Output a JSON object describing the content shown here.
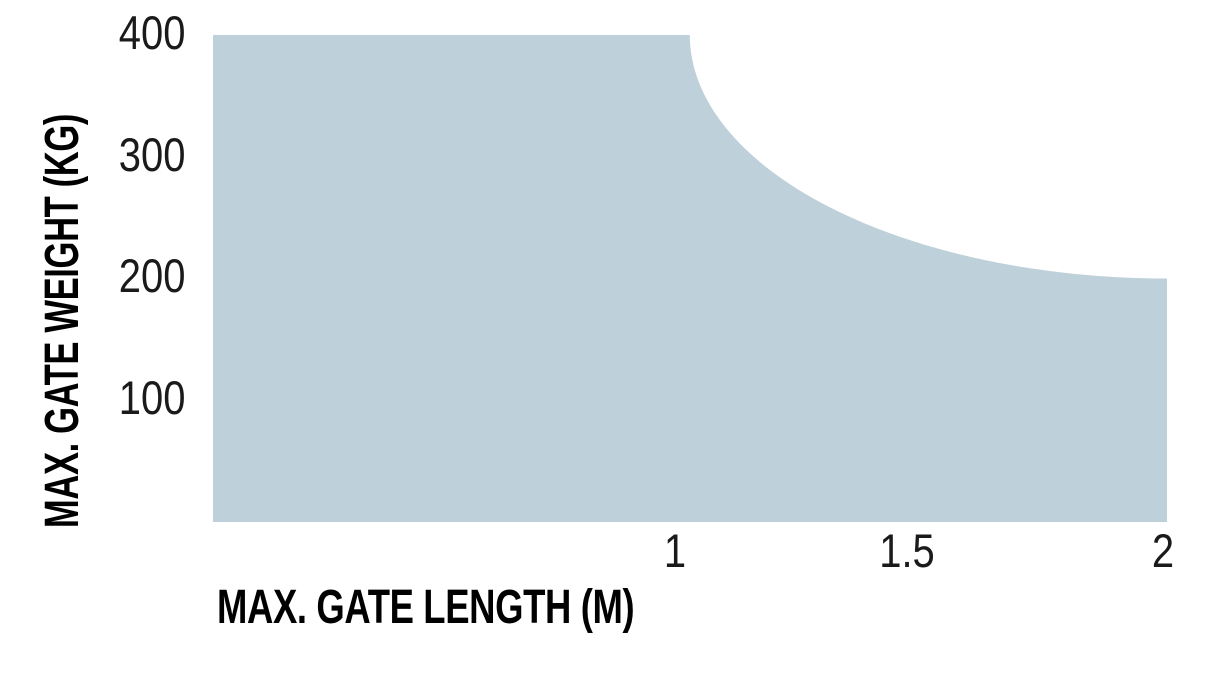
{
  "page": {
    "background": "#ffffff"
  },
  "chart_data": {
    "type": "area",
    "title": "",
    "xlabel": "MAX. GATE LENGTH (M)",
    "ylabel": "MAX. GATE WEIGHT (KG)",
    "xlim": [
      0.06,
      2.0
    ],
    "ylim": [
      0,
      400
    ],
    "grid": false,
    "legend": false,
    "xticks": [
      {
        "value": 1,
        "label": "1"
      },
      {
        "value": 1.5,
        "label": "1.5"
      },
      {
        "value": 2,
        "label": "2"
      }
    ],
    "yticks": [
      {
        "value": 400,
        "label": "400"
      },
      {
        "value": 300,
        "label": "300"
      },
      {
        "value": 200,
        "label": "200"
      },
      {
        "value": 100,
        "label": "100"
      }
    ],
    "area": {
      "description": "Permitted combinations of gate length and gate weight (filled region)",
      "flat_top_weight_kg": 400,
      "flat_top_until_length_m": 1.03,
      "curve_shape": "quarter-ellipse, vertical tangent at curve start, horizontal tangent at curve end",
      "curve_end": {
        "length_m": 2.0,
        "weight_kg": 200
      },
      "boundary_points": [
        {
          "length_m": 1.03,
          "weight_kg": 400
        },
        {
          "length_m": 1.07,
          "weight_kg": 350
        },
        {
          "length_m": 1.17,
          "weight_kg": 300
        },
        {
          "length_m": 1.32,
          "weight_kg": 258
        },
        {
          "length_m": 1.52,
          "weight_kg": 226
        },
        {
          "length_m": 1.75,
          "weight_kg": 205
        },
        {
          "length_m": 2.0,
          "weight_kg": 200
        }
      ]
    },
    "colors": {
      "area_fill": "#bed0da",
      "tick_text": "#1a1a1a",
      "label_text": "#000000"
    }
  }
}
